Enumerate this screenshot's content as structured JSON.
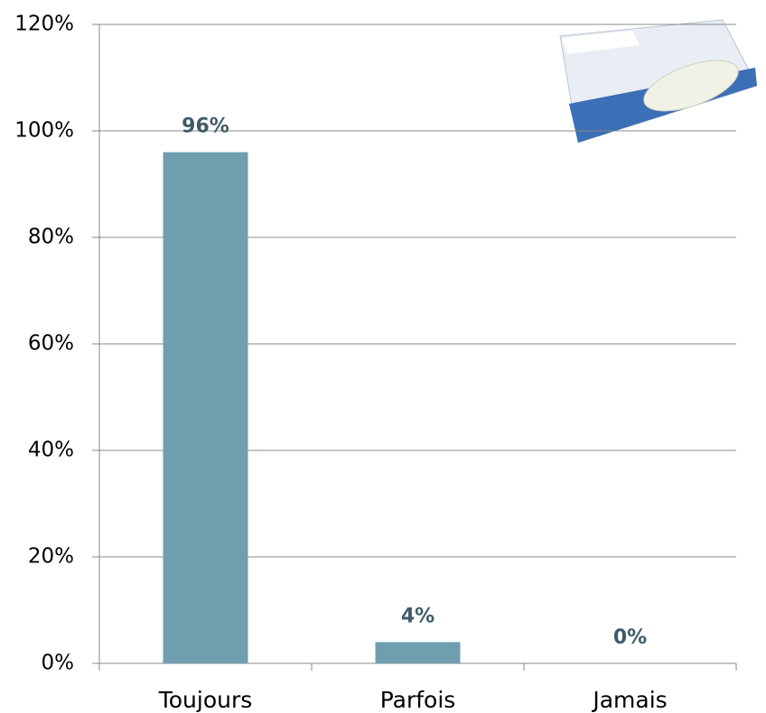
{
  "chart_data": {
    "type": "bar",
    "categories": [
      "Toujours",
      "Parfois",
      "Jamais"
    ],
    "values": [
      96,
      4,
      0
    ],
    "value_labels": [
      "96%",
      "4%",
      "0%"
    ],
    "color": "#6f9fae",
    "ylim": [
      0,
      120
    ],
    "yticks": [
      {
        "value": 0,
        "label": "0%"
      },
      {
        "value": 20,
        "label": "20%"
      },
      {
        "value": 40,
        "label": "40%"
      },
      {
        "value": 60,
        "label": "60%"
      },
      {
        "value": 80,
        "label": "80%"
      },
      {
        "value": 100,
        "label": "100%"
      },
      {
        "value": 120,
        "label": "120%"
      }
    ],
    "grid": true
  }
}
